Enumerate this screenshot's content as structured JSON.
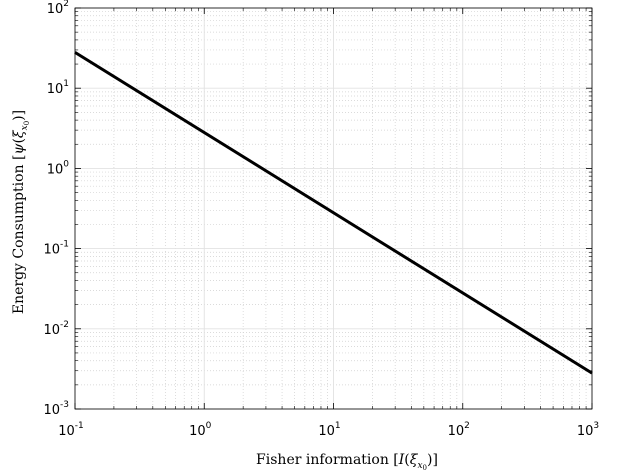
{
  "chart_data": {
    "type": "line",
    "title": "",
    "xlabel": "Fisher information [I(ξ_x0)]",
    "ylabel": "Energy Consumption [ψ(ξ_x0)]",
    "xscale": "log",
    "yscale": "log",
    "xlim": [
      0.1,
      1000
    ],
    "ylim": [
      0.001,
      100
    ],
    "x_ticks": [
      {
        "base": "10",
        "exp": "-1",
        "value": 0.1
      },
      {
        "base": "10",
        "exp": "0",
        "value": 1
      },
      {
        "base": "10",
        "exp": "1",
        "value": 10
      },
      {
        "base": "10",
        "exp": "2",
        "value": 100
      },
      {
        "base": "10",
        "exp": "3",
        "value": 1000
      }
    ],
    "y_ticks": [
      {
        "base": "10",
        "exp": "-3",
        "value": 0.001
      },
      {
        "base": "10",
        "exp": "-2",
        "value": 0.01
      },
      {
        "base": "10",
        "exp": "-1",
        "value": 0.1
      },
      {
        "base": "10",
        "exp": "0",
        "value": 1
      },
      {
        "base": "10",
        "exp": "1",
        "value": 10
      },
      {
        "base": "10",
        "exp": "2",
        "value": 100
      }
    ],
    "grid": true,
    "minor_grid": true,
    "series": [
      {
        "color": "#000000",
        "x": [
          0.1,
          1000
        ],
        "y": [
          28,
          0.0028
        ]
      }
    ]
  }
}
